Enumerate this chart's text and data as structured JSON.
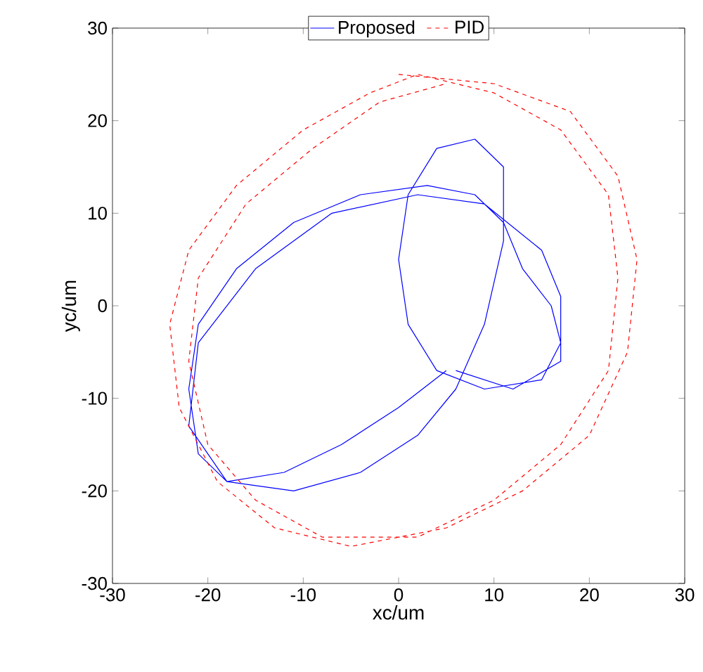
{
  "chart_data": {
    "type": "line",
    "xlabel": "xc/um",
    "ylabel": "yc/um",
    "xlim": [
      -30,
      30
    ],
    "ylim": [
      -30,
      30
    ],
    "xticks": [
      -30,
      -20,
      -10,
      0,
      10,
      20,
      30
    ],
    "yticks": [
      -30,
      -20,
      -10,
      0,
      10,
      20,
      30
    ],
    "legend": "top",
    "marker": "none",
    "grid": false,
    "series": [
      {
        "name": "Proposed",
        "color": "#0000ff",
        "line_style": "solid",
        "x": [
          5,
          0,
          -6,
          -12,
          -18,
          -21,
          -22,
          -21,
          -17,
          -11,
          -4,
          3,
          8,
          11,
          13,
          16,
          17,
          15,
          9,
          4,
          1,
          0,
          1,
          4,
          8,
          11,
          11,
          9,
          6,
          2,
          -4,
          -11,
          -18,
          -22,
          -21,
          -15,
          -7,
          2,
          9,
          15,
          17,
          17,
          12,
          6
        ],
        "values": [
          -7,
          -11,
          -15,
          -18,
          -19,
          -16,
          -9,
          -2,
          4,
          9,
          12,
          13,
          12,
          9,
          4,
          0,
          -4,
          -8,
          -9,
          -7,
          -2,
          5,
          12,
          17,
          18,
          15,
          7,
          -2,
          -9,
          -14,
          -18,
          -20,
          -19,
          -13,
          -4,
          4,
          10,
          12,
          11,
          6,
          1,
          -6,
          -9,
          -7
        ]
      },
      {
        "name": "PID",
        "color": "#ff0000",
        "line_style": "dashed",
        "x": [
          0,
          10,
          18,
          23,
          25,
          24,
          20,
          13,
          5,
          -5,
          -13,
          -19,
          -23,
          -24,
          -22,
          -17,
          -10,
          -3,
          2,
          10,
          17,
          22,
          23,
          22,
          17,
          10,
          2,
          -8,
          -15,
          -20,
          -22,
          -21,
          -16,
          -9,
          -2,
          5
        ],
        "values": [
          25,
          24,
          21,
          14,
          5,
          -5,
          -14,
          -20,
          -24,
          -26,
          -24,
          -19,
          -11,
          -2,
          6,
          13,
          19,
          23,
          25,
          23,
          19,
          12,
          3,
          -7,
          -15,
          -21,
          -25,
          -25,
          -21,
          -15,
          -6,
          3,
          11,
          17,
          22,
          24
        ]
      }
    ]
  }
}
